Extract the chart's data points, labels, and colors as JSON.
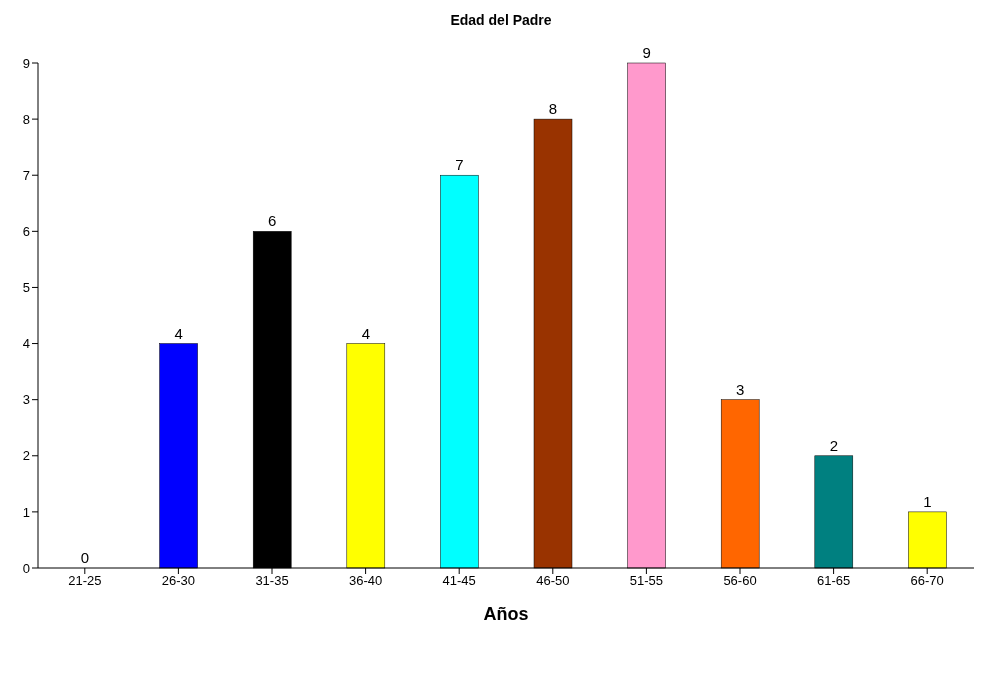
{
  "chart_data": {
    "type": "bar",
    "title": "Edad del Padre",
    "xlabel": "Años",
    "categories": [
      "21-25",
      "26-30",
      "31-35",
      "36-40",
      "41-45",
      "46-50",
      "51-55",
      "56-60",
      "61-65",
      "66-70"
    ],
    "values": [
      0,
      4,
      6,
      4,
      7,
      8,
      9,
      3,
      2,
      1
    ],
    "colors": [
      "#800000",
      "#0000ff",
      "#000000",
      "#ffff00",
      "#00ffff",
      "#993300",
      "#ff99cc",
      "#ff6600",
      "#008080",
      "#ffff00"
    ],
    "ylim": [
      0,
      9
    ],
    "yticks": [
      0,
      1,
      2,
      3,
      4,
      5,
      6,
      7,
      8,
      9
    ],
    "grid": false,
    "data_labels": true,
    "legend": false
  }
}
